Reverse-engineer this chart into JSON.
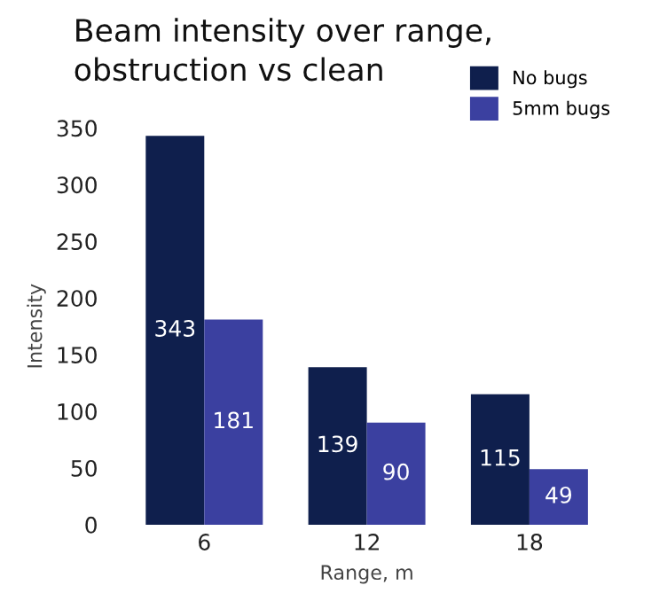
{
  "chart_data": {
    "type": "bar",
    "title": "Beam intensity over range,\nobstruction vs clean",
    "xlabel": "Range, m",
    "ylabel": "Intensity",
    "categories": [
      "6",
      "12",
      "18"
    ],
    "series": [
      {
        "name": "No bugs",
        "color": "#0f1f4d",
        "values": [
          343,
          139,
          115
        ]
      },
      {
        "name": "5mm bugs",
        "color": "#3b40a0",
        "values": [
          181,
          90,
          49
        ]
      }
    ],
    "ylim": [
      0,
      350
    ],
    "yticks": [
      0,
      50,
      100,
      150,
      200,
      250,
      300,
      350
    ],
    "grid": false,
    "legend": "top right",
    "data_labels": true
  }
}
